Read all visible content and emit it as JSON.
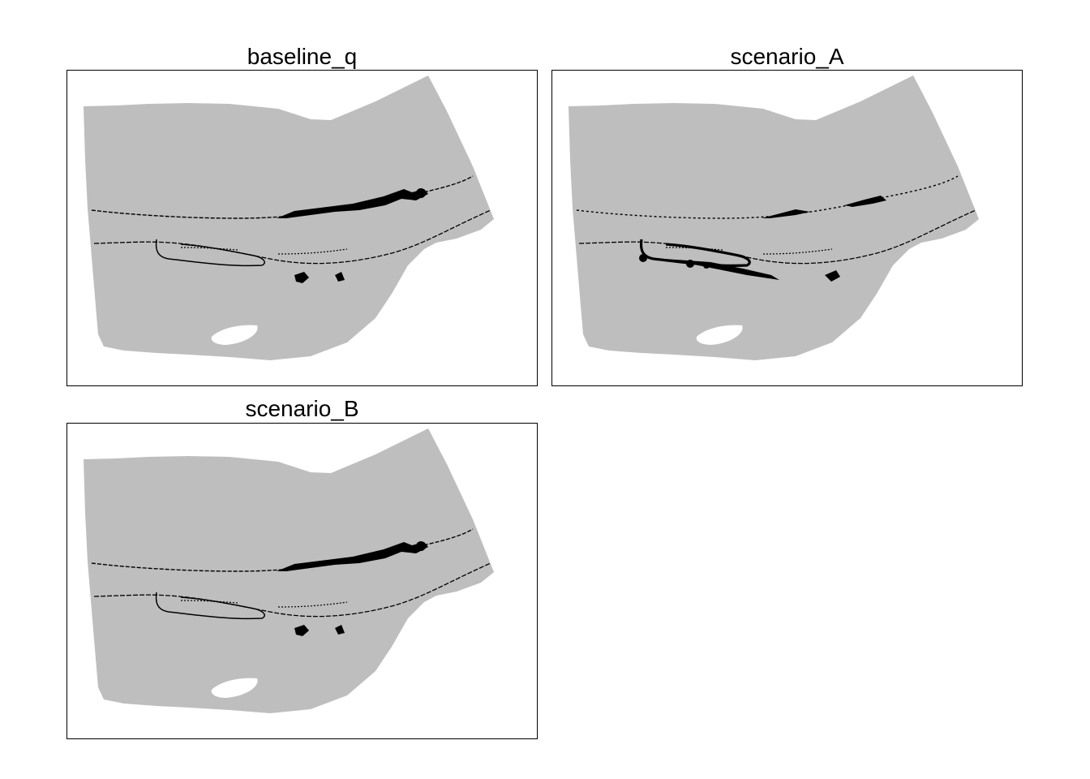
{
  "colors": {
    "land": "#bebebe",
    "feature": "#000000",
    "background": "#ffffff",
    "frame": "#000000"
  },
  "panels": [
    {
      "title": "baseline_q"
    },
    {
      "title": "scenario_A"
    },
    {
      "title": "scenario_B"
    }
  ]
}
